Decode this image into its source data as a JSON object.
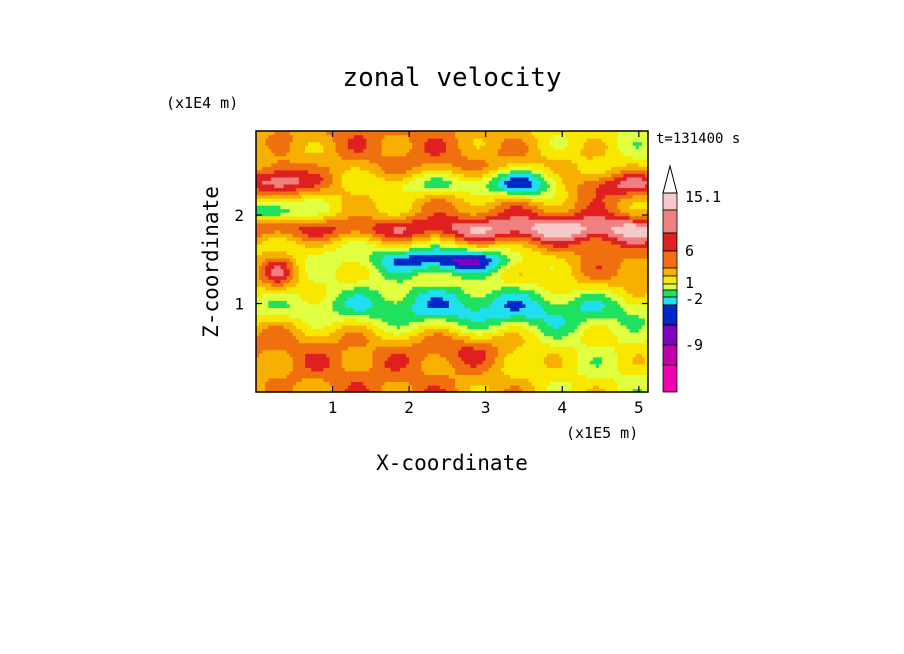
{
  "chart_data": {
    "type": "heatmap",
    "title": "zonal velocity",
    "time_label": "t=131400 s",
    "xlabel": "X-coordinate",
    "ylabel": "Z-coordinate",
    "x_unit": "(x1E5 m)",
    "y_unit": "(x1E4 m)",
    "xlim": [
      0.0,
      5.12
    ],
    "ylim": [
      0.0,
      2.95
    ],
    "x_ticks": [
      1,
      2,
      3,
      4,
      5
    ],
    "y_ticks": [
      1,
      2
    ],
    "colorbar": {
      "labeled_levels": [
        "15.1",
        "6",
        "1",
        "-2",
        "-9"
      ],
      "colors_high_to_low": [
        "#f7c8c8",
        "#f08080",
        "#e02020",
        "#f07010",
        "#f8b000",
        "#f8e800",
        "#e0ff40",
        "#20e060",
        "#20e0f0",
        "#0028c8",
        "#8000c0",
        "#c000a8",
        "#f000b0"
      ],
      "extend": "max"
    },
    "description_grid_colors": [
      "#f000b0",
      "#c000a8",
      "#8000c0",
      "#0028c8",
      "#20e0f0",
      "#20e060",
      "#e0ff40",
      "#f8e800",
      "#f8b000",
      "#f07010",
      "#e02020",
      "#f08080",
      "#f7c8c8"
    ]
  }
}
